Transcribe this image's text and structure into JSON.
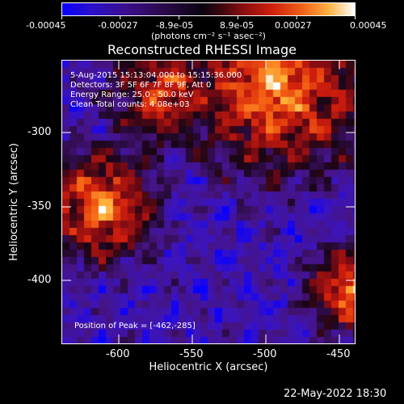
{
  "colorbar": {
    "tick_labels": [
      "-0.00045",
      "-0.00027",
      "-8.9e-05",
      "8.9e-05",
      "0.00027",
      "0.00045"
    ],
    "units": "(photons cm⁻² s⁻¹ asec⁻²)"
  },
  "plot": {
    "title": "Reconstructed RHESSI Image",
    "xlabel": "Heliocentric X (arcsec)",
    "ylabel": "Heliocentric Y (arcsec)",
    "x_ticks": [
      "-600",
      "-550",
      "-500",
      "-450"
    ],
    "y_ticks": [
      "-300",
      "-350",
      "-400"
    ]
  },
  "overlay": {
    "time_range": "5-Aug-2015 15:13:04.000 to 15:15:36.000",
    "detectors": "Detectors: 3F 5F 6F 7F 8F 9F, Att 0",
    "energy_range": "Energy Range: 25.0 - 50.0 keV",
    "clean_counts": "Clean     Total counts: 4.08e+03",
    "peak_position": "Position of Peak = [-462,-285]"
  },
  "footer": {
    "timestamp": "22-May-2022 18:30"
  }
}
